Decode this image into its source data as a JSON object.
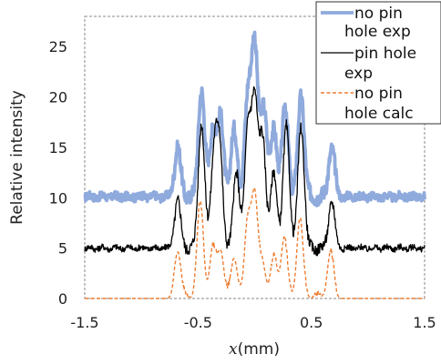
{
  "chart_data": {
    "type": "line",
    "title": "",
    "xlabel_var": "x",
    "xlabel_unit": "(mm)",
    "ylabel": "Relative intensity",
    "xlim": [
      -1.5,
      1.5
    ],
    "ylim": [
      0,
      28
    ],
    "x_tick_labels": [
      "-1.5",
      "-0.5",
      "0.5",
      "1.5"
    ],
    "x_ticks": [
      -1.5,
      -0.5,
      0.5,
      1.5
    ],
    "y_ticks": [
      0,
      5,
      10,
      15,
      20,
      25
    ],
    "grid": false,
    "legend_position": "top-right",
    "series": [
      {
        "name": "no pin hole exp",
        "legend_lines": [
          "no pin",
          "hole exp"
        ],
        "color": "#8faadc",
        "baseline": 10.1,
        "x": [
          -0.68,
          -0.47,
          -0.37,
          -0.3,
          -0.18,
          -0.06,
          0.0,
          0.08,
          0.17,
          0.27,
          0.41,
          0.68
        ],
        "y": [
          14.9,
          20.7,
          16.8,
          17.8,
          16.8,
          19.7,
          25.0,
          19.2,
          16.8,
          19.0,
          20.2,
          14.9
        ]
      },
      {
        "name": "pin hole exp",
        "legend_lines": [
          "pin hole",
          "exp"
        ],
        "color": "#000000",
        "baseline": 5.0,
        "x": [
          -0.68,
          -0.47,
          -0.36,
          -0.31,
          -0.16,
          -0.06,
          0.0,
          0.07,
          0.17,
          0.28,
          0.41,
          0.68
        ],
        "y": [
          9.7,
          17.4,
          13.9,
          14.8,
          12.6,
          16.4,
          19.2,
          16.1,
          12.6,
          17.1,
          17.1,
          9.6
        ]
      },
      {
        "name": "no pin hole calc",
        "legend_lines": [
          "no pin",
          "hole calc"
        ],
        "color": "#ed7d31",
        "baseline": 0.0,
        "x": [
          -0.68,
          -0.48,
          -0.37,
          -0.3,
          -0.18,
          -0.06,
          0.0,
          0.07,
          0.17,
          0.26,
          0.4,
          0.67
        ],
        "y": [
          4.6,
          9.3,
          4.7,
          4.6,
          3.9,
          7.4,
          9.7,
          3.3,
          3.9,
          5.8,
          7.7,
          4.4
        ]
      }
    ]
  }
}
